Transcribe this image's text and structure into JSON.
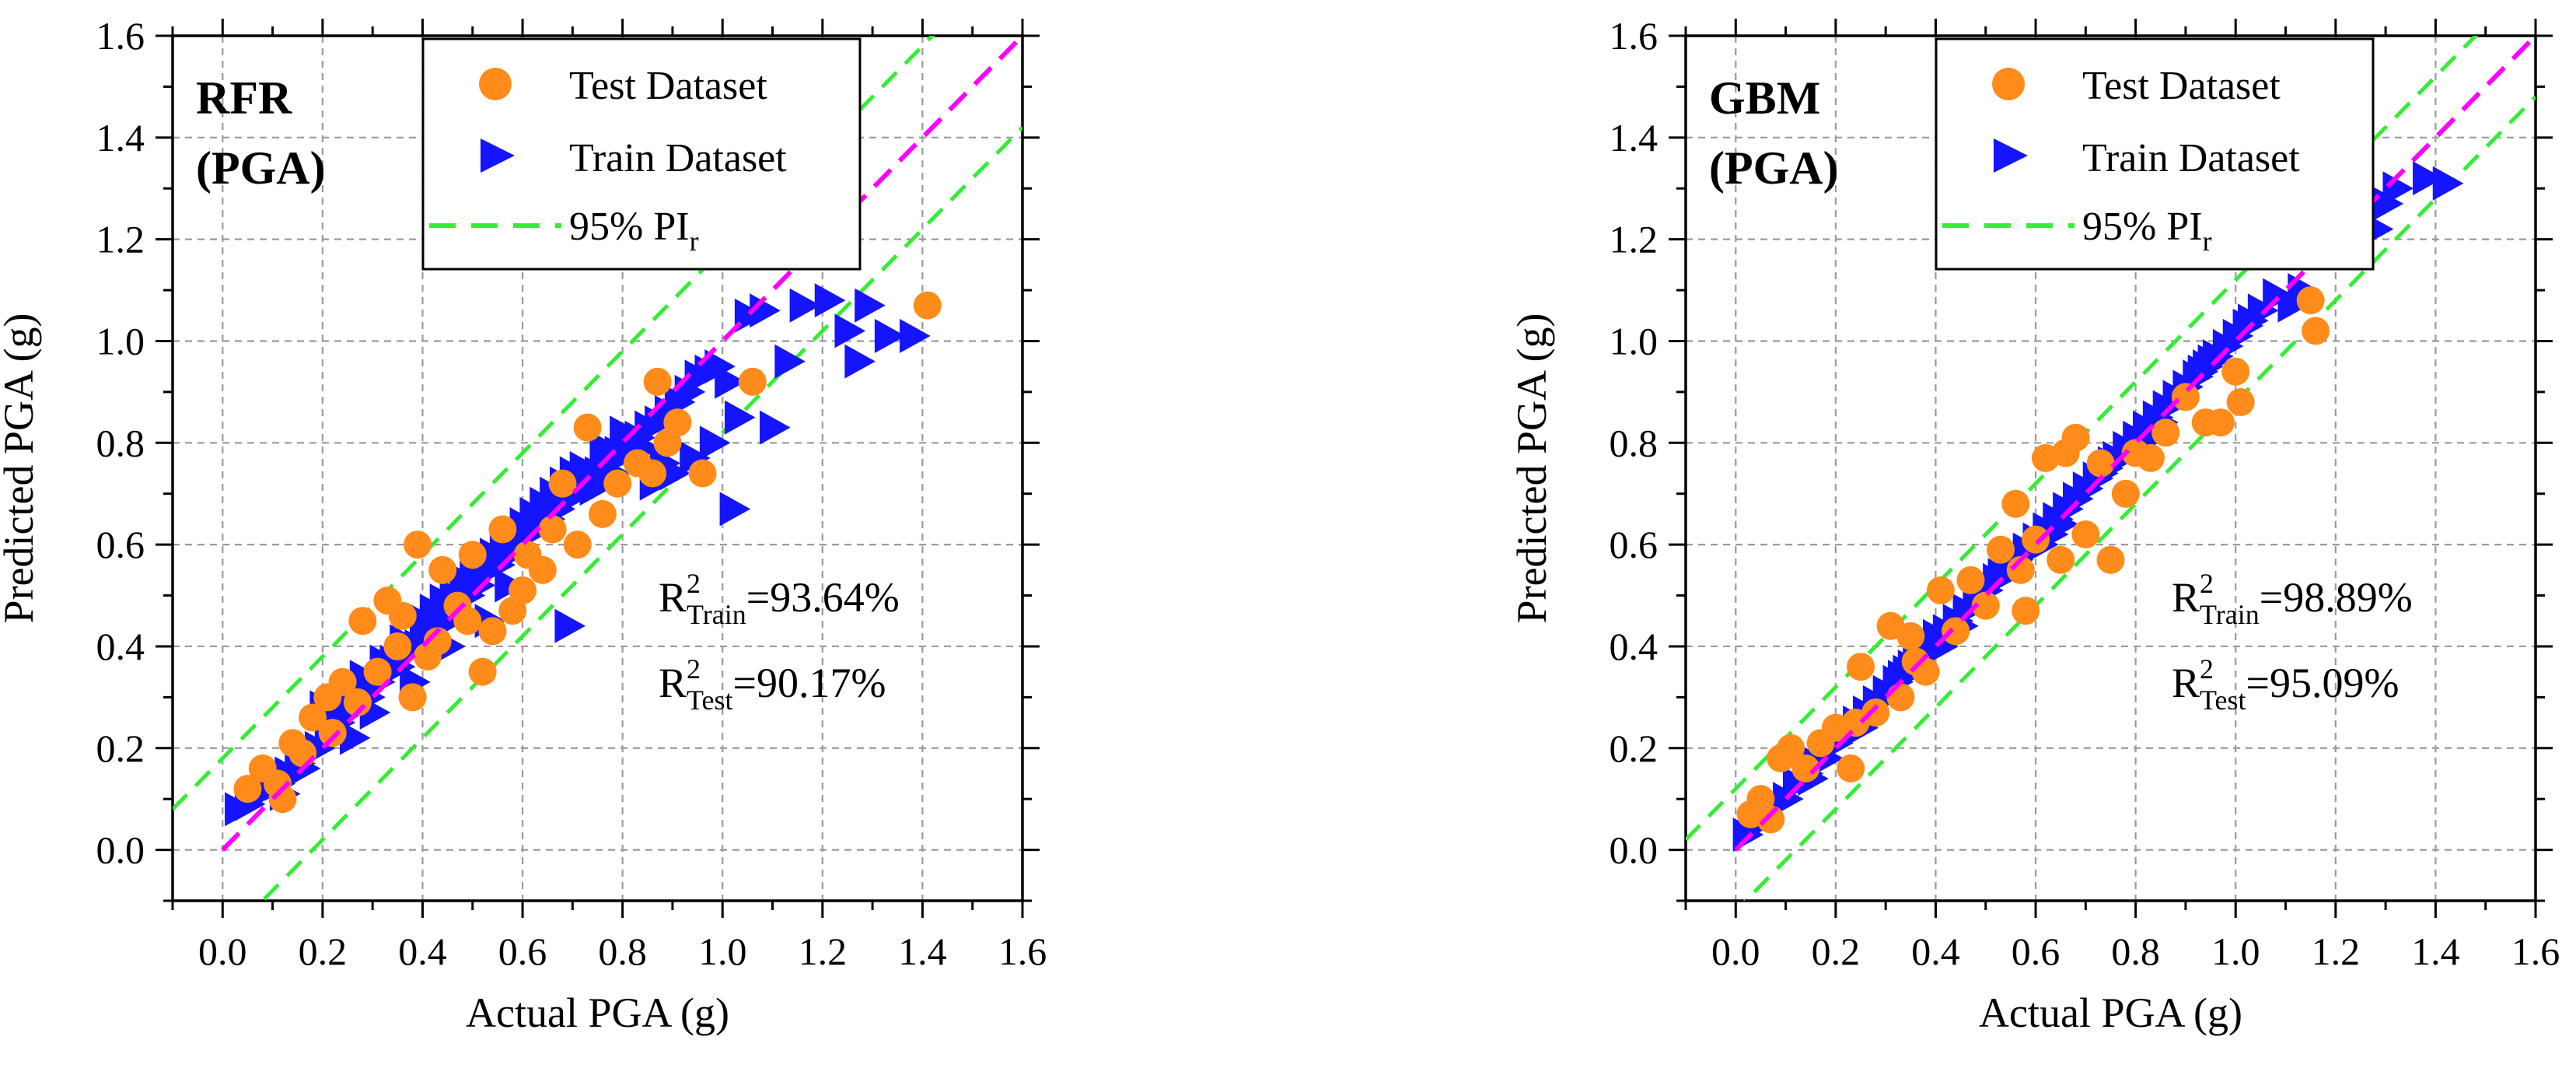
{
  "colors": {
    "test": "#FF8C1A",
    "train": "#1414FF",
    "pi": "#33EE33",
    "ideal": "#FF00FF",
    "grid": "#9a9a9a"
  },
  "chart_data": [
    {
      "type": "scatter",
      "panel_label_line1": "RFR",
      "panel_label_line2": "(PGA)",
      "xlabel": "Actual PGA (g)",
      "ylabel": "Predicted PGA (g)",
      "xlim": [
        -0.1,
        1.6
      ],
      "ylim": [
        -0.1,
        1.6
      ],
      "xticks": [
        "0.0",
        "0.2",
        "0.4",
        "0.6",
        "0.8",
        "1.0",
        "1.2",
        "1.4",
        "1.6"
      ],
      "yticks": [
        "0.0",
        "0.2",
        "0.4",
        "0.6",
        "0.8",
        "1.0",
        "1.2",
        "1.4",
        "1.6"
      ],
      "legend": {
        "position": "top-center",
        "test": "Test Dataset",
        "train": "Train Dataset",
        "pi_main": "95% PI",
        "pi_sub": "r"
      },
      "pi_offset": 0.18,
      "stats": {
        "train": {
          "r": "R",
          "sup": "2",
          "sub": "Train",
          "value": "=93.64%"
        },
        "test": {
          "r": "R",
          "sup": "2",
          "sub": "Test",
          "value": "=90.17%"
        }
      },
      "series": [
        {
          "name": "Test Dataset",
          "marker": "circle",
          "x": [
            0.05,
            0.08,
            0.11,
            0.14,
            0.18,
            0.21,
            0.24,
            0.27,
            0.28,
            0.31,
            0.33,
            0.35,
            0.38,
            0.39,
            0.41,
            0.44,
            0.47,
            0.49,
            0.52,
            0.54,
            0.56,
            0.58,
            0.61,
            0.64,
            0.66,
            0.68,
            0.71,
            0.73,
            0.76,
            0.79,
            0.83,
            0.86,
            0.87,
            0.89,
            0.91,
            0.96,
            1.06,
            1.41,
            0.36,
            0.22,
            0.16,
            0.12,
            0.43,
            0.5,
            0.6
          ],
          "y": [
            0.12,
            0.16,
            0.13,
            0.21,
            0.26,
            0.3,
            0.33,
            0.29,
            0.45,
            0.35,
            0.49,
            0.4,
            0.3,
            0.6,
            0.38,
            0.55,
            0.48,
            0.45,
            0.35,
            0.43,
            0.63,
            0.47,
            0.58,
            0.55,
            0.63,
            0.72,
            0.6,
            0.83,
            0.66,
            0.72,
            0.76,
            0.74,
            0.92,
            0.8,
            0.84,
            0.74,
            0.92,
            1.07,
            0.46,
            0.23,
            0.19,
            0.1,
            0.41,
            0.58,
            0.51
          ]
        },
        {
          "name": "Train Dataset",
          "marker": "triangle-right",
          "x": [
            0.03,
            0.05,
            0.07,
            0.09,
            0.11,
            0.13,
            0.15,
            0.17,
            0.19,
            0.21,
            0.23,
            0.25,
            0.27,
            0.29,
            0.31,
            0.33,
            0.35,
            0.37,
            0.39,
            0.41,
            0.43,
            0.45,
            0.47,
            0.49,
            0.51,
            0.53,
            0.55,
            0.57,
            0.59,
            0.61,
            0.63,
            0.65,
            0.67,
            0.69,
            0.71,
            0.73,
            0.75,
            0.77,
            0.79,
            0.81,
            0.83,
            0.85,
            0.87,
            0.89,
            0.91,
            0.93,
            0.95,
            0.97,
            0.99,
            1.01,
            1.03,
            1.05,
            1.08,
            1.1,
            1.13,
            1.16,
            1.21,
            1.25,
            1.27,
            1.29,
            1.33,
            1.38,
            0.2,
            0.24,
            0.28,
            0.32,
            0.36,
            0.4,
            0.44,
            0.48,
            0.52,
            0.56,
            0.6,
            0.64,
            0.68,
            0.72,
            0.76,
            0.8,
            0.84,
            0.88,
            0.34,
            0.42,
            0.46,
            0.5,
            0.54,
            0.58,
            0.62,
            0.66,
            0.7,
            0.74,
            0.78,
            0.82,
            0.86,
            0.9,
            0.94,
            0.98,
            1.02,
            0.12,
            0.16,
            0.26,
            0.3,
            0.38,
            0.45,
            0.53,
            0.57,
            0.69
          ],
          "y": [
            0.08,
            0.09,
            0.11,
            0.12,
            0.13,
            0.15,
            0.17,
            0.19,
            0.2,
            0.23,
            0.25,
            0.27,
            0.29,
            0.3,
            0.33,
            0.35,
            0.36,
            0.39,
            0.4,
            0.42,
            0.44,
            0.45,
            0.47,
            0.5,
            0.52,
            0.55,
            0.56,
            0.58,
            0.6,
            0.62,
            0.64,
            0.65,
            0.67,
            0.69,
            0.71,
            0.73,
            0.74,
            0.76,
            0.78,
            0.8,
            0.81,
            0.83,
            0.84,
            0.86,
            0.88,
            0.9,
            0.93,
            0.94,
            0.95,
            0.92,
            0.85,
            1.05,
            1.06,
            0.83,
            0.96,
            1.07,
            1.08,
            1.02,
            0.96,
            1.07,
            1.01,
            1.01,
            0.28,
            0.3,
            0.34,
            0.37,
            0.41,
            0.45,
            0.49,
            0.53,
            0.57,
            0.6,
            0.64,
            0.68,
            0.72,
            0.75,
            0.79,
            0.82,
            0.79,
            0.76,
            0.37,
            0.47,
            0.5,
            0.55,
            0.58,
            0.61,
            0.66,
            0.7,
            0.74,
            0.71,
            0.74,
            0.79,
            0.72,
            0.74,
            0.77,
            0.8,
            0.67,
            0.11,
            0.16,
            0.22,
            0.27,
            0.33,
            0.4,
            0.45,
            0.52,
            0.44
          ]
        }
      ]
    },
    {
      "type": "scatter",
      "panel_label_line1": "GBM",
      "panel_label_line2": "(PGA)",
      "xlabel": "Actual PGA (g)",
      "ylabel": "Predicted PGA (g)",
      "xlim": [
        -0.1,
        1.6
      ],
      "ylim": [
        -0.1,
        1.6
      ],
      "xticks": [
        "0.0",
        "0.2",
        "0.4",
        "0.6",
        "0.8",
        "1.0",
        "1.2",
        "1.4",
        "1.6"
      ],
      "yticks": [
        "0.0",
        "0.2",
        "0.4",
        "0.6",
        "0.8",
        "1.0",
        "1.2",
        "1.4",
        "1.6"
      ],
      "legend": {
        "position": "top-center",
        "test": "Test Dataset",
        "train": "Train Dataset",
        "pi_main": "95% PI",
        "pi_sub": "r"
      },
      "pi_offset": 0.12,
      "stats": {
        "train": {
          "r": "R",
          "sup": "2",
          "sub": "Train",
          "value": "=98.89%"
        },
        "test": {
          "r": "R",
          "sup": "2",
          "sub": "Test",
          "value": "=95.09%"
        }
      },
      "series": [
        {
          "name": "Test Dataset",
          "marker": "circle",
          "x": [
            0.03,
            0.05,
            0.07,
            0.09,
            0.11,
            0.14,
            0.17,
            0.2,
            0.23,
            0.25,
            0.28,
            0.31,
            0.33,
            0.35,
            0.38,
            0.41,
            0.44,
            0.47,
            0.5,
            0.53,
            0.56,
            0.58,
            0.6,
            0.62,
            0.65,
            0.68,
            0.7,
            0.73,
            0.75,
            0.78,
            0.8,
            0.83,
            0.86,
            0.9,
            0.94,
            0.97,
            1.0,
            1.01,
            1.15,
            1.16,
            0.24,
            0.36,
            0.57,
            0.66
          ],
          "y": [
            0.07,
            0.1,
            0.06,
            0.18,
            0.2,
            0.16,
            0.21,
            0.24,
            0.16,
            0.36,
            0.27,
            0.44,
            0.3,
            0.42,
            0.35,
            0.51,
            0.43,
            0.53,
            0.48,
            0.59,
            0.68,
            0.47,
            0.61,
            0.77,
            0.57,
            0.81,
            0.62,
            0.76,
            0.57,
            0.7,
            0.78,
            0.77,
            0.82,
            0.89,
            0.84,
            0.84,
            0.94,
            0.88,
            1.08,
            1.02,
            0.25,
            0.37,
            0.55,
            0.78
          ]
        },
        {
          "name": "Train Dataset",
          "marker": "triangle-right",
          "x": [
            0.02,
            0.04,
            0.06,
            0.08,
            0.1,
            0.12,
            0.14,
            0.16,
            0.18,
            0.2,
            0.22,
            0.24,
            0.26,
            0.28,
            0.3,
            0.32,
            0.34,
            0.36,
            0.38,
            0.4,
            0.42,
            0.44,
            0.46,
            0.48,
            0.5,
            0.52,
            0.54,
            0.56,
            0.58,
            0.6,
            0.62,
            0.64,
            0.66,
            0.68,
            0.7,
            0.72,
            0.74,
            0.76,
            0.78,
            0.8,
            0.82,
            0.84,
            0.86,
            0.88,
            0.9,
            0.92,
            0.94,
            0.96,
            0.98,
            1.0,
            1.02,
            1.05,
            1.08,
            1.11,
            1.13,
            1.28,
            1.3,
            1.32,
            1.38,
            1.42,
            0.15,
            0.25,
            0.35,
            0.45,
            0.55,
            0.65,
            0.75,
            0.85,
            0.95,
            0.33,
            0.43,
            0.53,
            0.63,
            0.73,
            0.83,
            0.93,
            1.03,
            0.21,
            0.41,
            0.61,
            0.81
          ],
          "y": [
            0.03,
            0.05,
            0.07,
            0.09,
            0.1,
            0.13,
            0.15,
            0.17,
            0.18,
            0.21,
            0.23,
            0.25,
            0.27,
            0.29,
            0.31,
            0.33,
            0.35,
            0.37,
            0.39,
            0.42,
            0.43,
            0.45,
            0.47,
            0.49,
            0.51,
            0.53,
            0.55,
            0.57,
            0.59,
            0.61,
            0.63,
            0.65,
            0.67,
            0.69,
            0.71,
            0.73,
            0.75,
            0.77,
            0.79,
            0.81,
            0.83,
            0.85,
            0.87,
            0.89,
            0.91,
            0.93,
            0.95,
            0.97,
            0.99,
            1.01,
            1.03,
            1.06,
            1.09,
            1.07,
            1.1,
            1.22,
            1.27,
            1.3,
            1.32,
            1.31,
            0.14,
            0.24,
            0.36,
            0.44,
            0.56,
            0.64,
            0.76,
            0.84,
            0.96,
            0.34,
            0.42,
            0.54,
            0.62,
            0.74,
            0.82,
            0.94,
            1.04,
            0.22,
            0.4,
            0.6,
            0.8
          ]
        }
      ]
    }
  ]
}
